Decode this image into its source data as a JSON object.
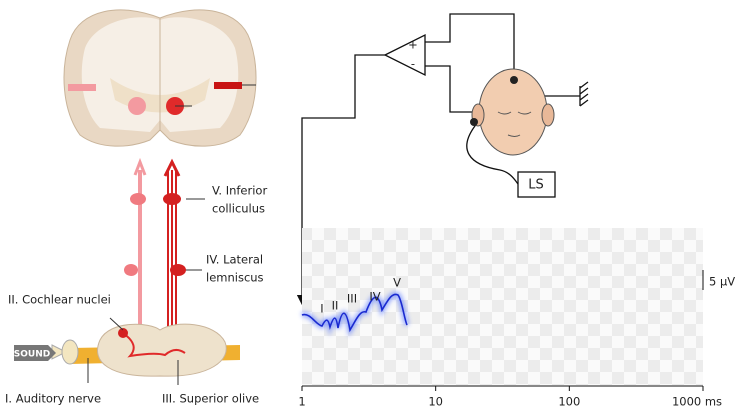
{
  "pathway_labels": {
    "inferior_colliculus": [
      "V. Inferior",
      "colliculus"
    ],
    "lateral_lemniscus": [
      "IV. Lateral",
      "lemniscus"
    ],
    "cochlear_nuclei": "II. Cochlear nuclei",
    "auditory_nerve": "I. Auditory nerve",
    "superior_olive": "III. Superior olive",
    "sound": "SOUND"
  },
  "amplifier": {
    "plus": "+",
    "minus": "-"
  },
  "speaker": "LS",
  "recording": {
    "wave_labels": [
      "I",
      "II",
      "III",
      "IV",
      "V"
    ],
    "scale_bar": "5 µV",
    "axis": {
      "log_scale": true,
      "xlim": [
        1,
        1000
      ],
      "xticks": [
        1,
        10,
        100,
        {
          "value": 1000,
          "label": "1000 ms"
        }
      ]
    }
  }
}
